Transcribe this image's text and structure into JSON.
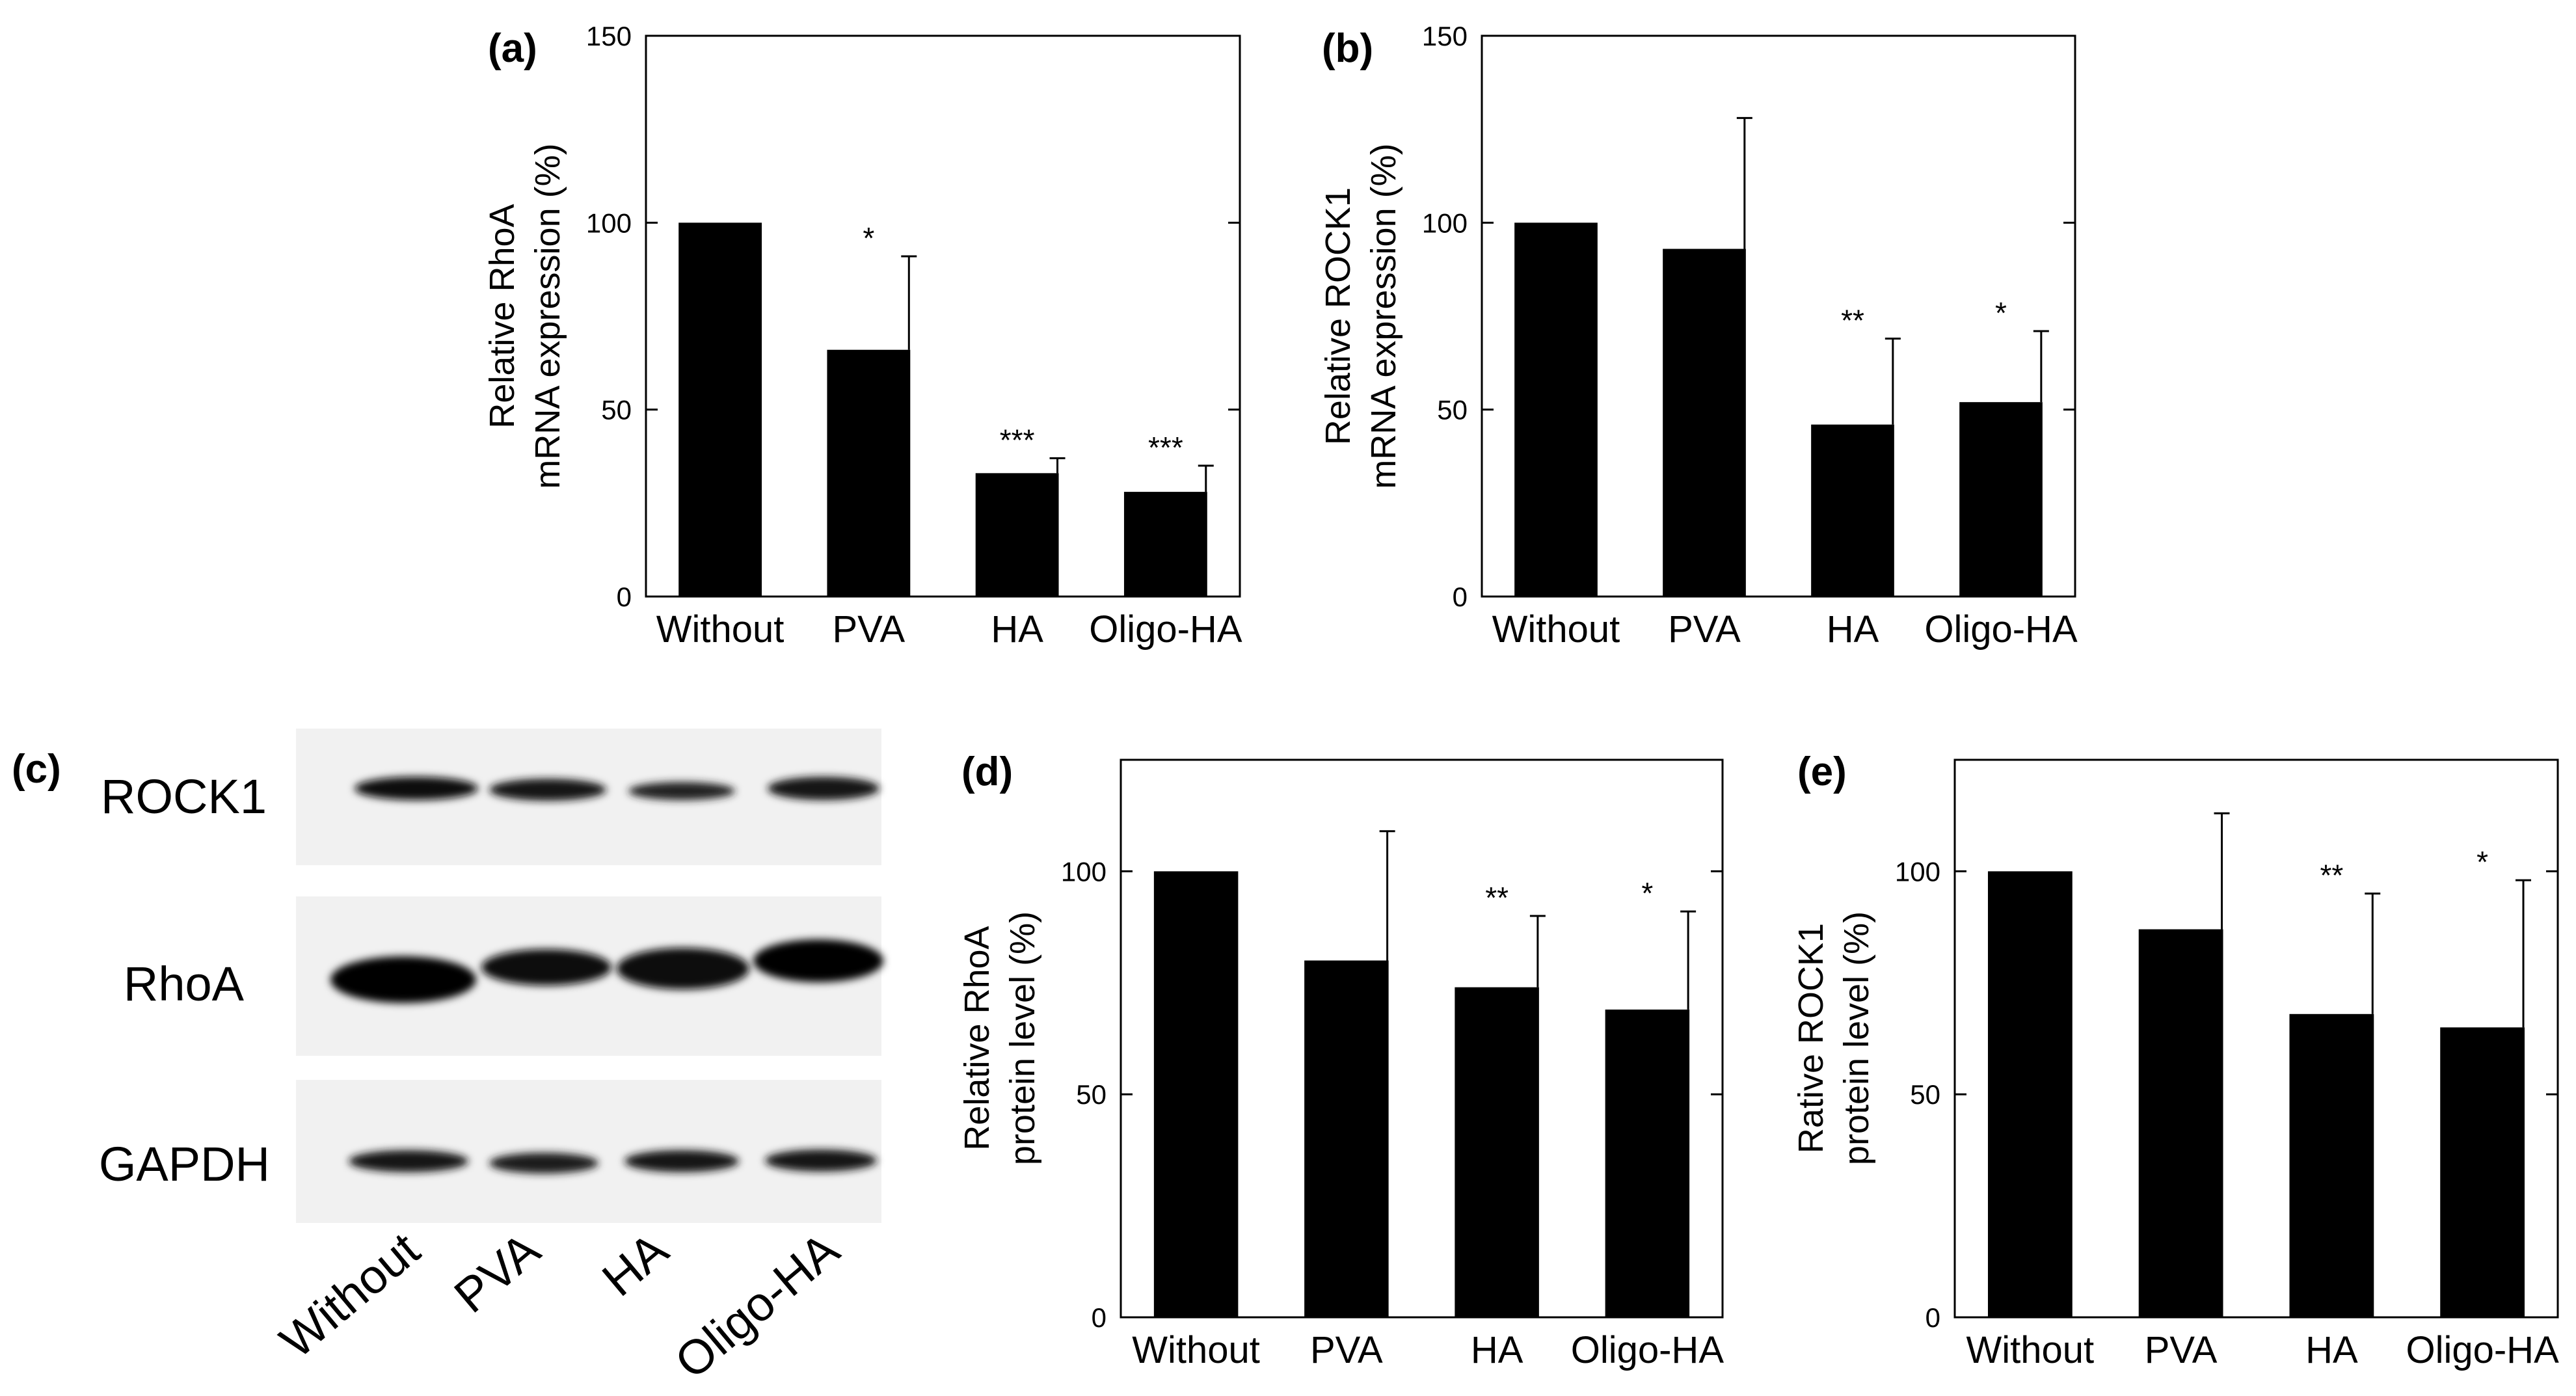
{
  "figure": {
    "western_blot": {
      "panel_label": "(c)",
      "row_labels": [
        "ROCK1",
        "RhoA",
        "GAPDH"
      ],
      "lane_labels": [
        "Without",
        "PVA",
        "HA",
        "Oligo-HA"
      ]
    }
  },
  "chart_data": [
    {
      "panel": "(a)",
      "type": "bar",
      "categories": [
        "Without",
        "PVA",
        "HA",
        "Oligo-HA"
      ],
      "values": [
        100,
        66,
        33,
        28
      ],
      "error_upper": [
        100,
        91,
        37,
        35
      ],
      "significance": [
        "",
        "*",
        "***",
        "***"
      ],
      "title": "",
      "ylabel": [
        "Relative RhoA",
        "mRNA expression (%)"
      ],
      "xlabel": "",
      "ylim": [
        0,
        150
      ],
      "yticks": [
        0,
        50,
        100,
        150
      ],
      "colors": {
        "bar": "#000000"
      }
    },
    {
      "panel": "(b)",
      "type": "bar",
      "categories": [
        "Without",
        "PVA",
        "HA",
        "Oligo-HA"
      ],
      "values": [
        100,
        93,
        46,
        52
      ],
      "error_upper": [
        100,
        128,
        69,
        71
      ],
      "significance": [
        "",
        "",
        "**",
        "*"
      ],
      "title": "",
      "ylabel": [
        "Relative ROCK1",
        "mRNA expression (%)"
      ],
      "xlabel": "",
      "ylim": [
        0,
        150
      ],
      "yticks": [
        0,
        50,
        100,
        150
      ],
      "colors": {
        "bar": "#000000"
      }
    },
    {
      "panel": "(d)",
      "type": "bar",
      "categories": [
        "Without",
        "PVA",
        "HA",
        "Oligo-HA"
      ],
      "values": [
        100,
        80,
        74,
        69
      ],
      "error_upper": [
        100,
        109,
        90,
        91
      ],
      "significance": [
        "",
        "",
        "**",
        "*"
      ],
      "title": "",
      "ylabel": [
        "Relative RhoA",
        "protein level (%)"
      ],
      "xlabel": "",
      "ylim": [
        0,
        125
      ],
      "yticks": [
        0,
        50,
        100
      ],
      "colors": {
        "bar": "#000000"
      }
    },
    {
      "panel": "(e)",
      "type": "bar",
      "categories": [
        "Without",
        "PVA",
        "HA",
        "Oligo-HA"
      ],
      "values": [
        100,
        87,
        68,
        65
      ],
      "error_upper": [
        100,
        113,
        95,
        98
      ],
      "significance": [
        "",
        "",
        "**",
        "*"
      ],
      "title": "",
      "ylabel": [
        "Rative ROCK1",
        "protein level (%)"
      ],
      "xlabel": "",
      "ylim": [
        0,
        125
      ],
      "yticks": [
        0,
        50,
        100
      ],
      "colors": {
        "bar": "#000000"
      }
    }
  ]
}
